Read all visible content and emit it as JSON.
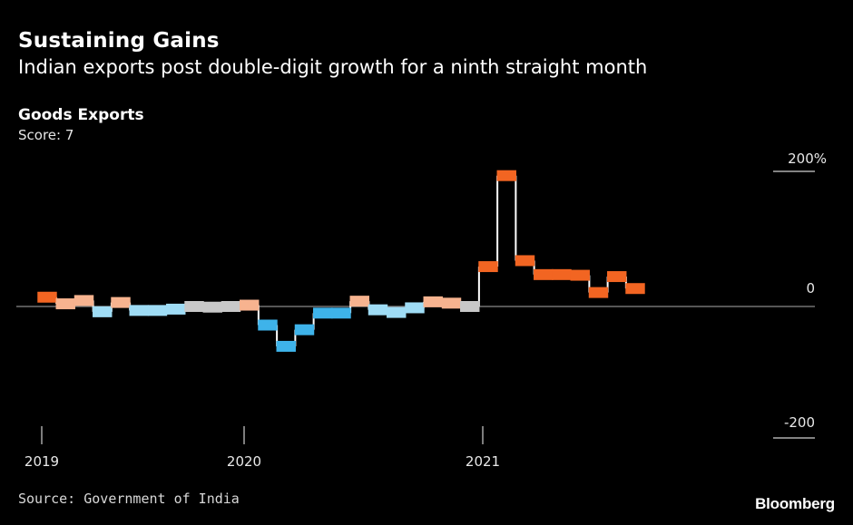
{
  "header": {
    "title": "Sustaining Gains",
    "subtitle": "Indian exports post double-digit growth for a ninth straight month"
  },
  "series_header": {
    "name": "Goods Exports",
    "score": "Score: 7"
  },
  "footer": {
    "source": "Source: Government of India",
    "brand": "Bloomberg"
  },
  "colors": {
    "background": "#000000",
    "strong_positive": "#f26522",
    "mild_positive": "#f7b38f",
    "neutral": "#c8c8c8",
    "mild_negative": "#9fdcf5",
    "strong_negative": "#3eb3ea",
    "connector": "#ffffff",
    "zero_line": "#8a8a8a",
    "axis": "#d0d0d0"
  },
  "chart_data": {
    "type": "line",
    "title": "Goods Exports",
    "subtitle": "Score: 7",
    "x_tick_labels": [
      "2019",
      "2020",
      "2021"
    ],
    "y_tick_labels": [
      "200%",
      "0",
      "-200"
    ],
    "ylim": [
      -200,
      200
    ],
    "unit": "% YoY",
    "grid": false,
    "series": [
      {
        "values": [
          {
            "date": "2019-01",
            "value": 14
          },
          {
            "date": "2019-02",
            "value": 4
          },
          {
            "date": "2019-03",
            "value": 9
          },
          {
            "date": "2019-04",
            "value": -8
          },
          {
            "date": "2019-05",
            "value": 6
          },
          {
            "date": "2019-06",
            "value": -6
          },
          {
            "date": "2019-07",
            "value": -6
          },
          {
            "date": "2019-08",
            "value": -4
          },
          {
            "date": "2019-09",
            "value": 0
          },
          {
            "date": "2019-10",
            "value": -1
          },
          {
            "date": "2019-11",
            "value": 0
          },
          {
            "date": "2019-12",
            "value": 2
          },
          {
            "date": "2020-01",
            "value": -28
          },
          {
            "date": "2020-02",
            "value": -60
          },
          {
            "date": "2020-03",
            "value": -35
          },
          {
            "date": "2020-04",
            "value": -10
          },
          {
            "date": "2020-05",
            "value": -10
          },
          {
            "date": "2020-06",
            "value": 8
          },
          {
            "date": "2020-07",
            "value": -5
          },
          {
            "date": "2020-08",
            "value": -9
          },
          {
            "date": "2020-09",
            "value": -2
          },
          {
            "date": "2020-10",
            "value": 7
          },
          {
            "date": "2020-11",
            "value": 5
          },
          {
            "date": "2020-12",
            "value": 0
          },
          {
            "date": "2021-01",
            "value": 60
          },
          {
            "date": "2021-02",
            "value": 197
          },
          {
            "date": "2021-03",
            "value": 69
          },
          {
            "date": "2021-04",
            "value": 48
          },
          {
            "date": "2021-05",
            "value": 48
          },
          {
            "date": "2021-06",
            "value": 47
          },
          {
            "date": "2021-07",
            "value": 21
          },
          {
            "date": "2021-08",
            "value": 45
          },
          {
            "date": "2021-09",
            "value": 27
          }
        ]
      }
    ]
  }
}
